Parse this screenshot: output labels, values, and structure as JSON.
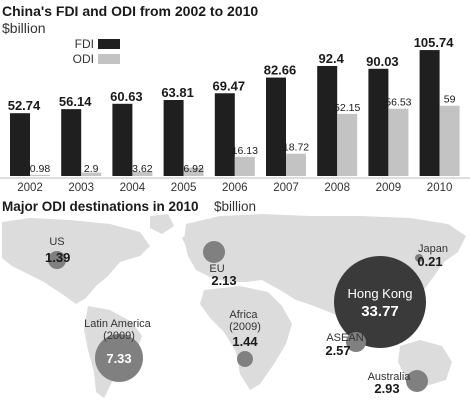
{
  "chart_data": [
    {
      "type": "bar",
      "title": "China's FDI and ODI  from 2002 to 2010",
      "unit": "$billion",
      "categories": [
        "2002",
        "2003",
        "2004",
        "2005",
        "2006",
        "2007",
        "2008",
        "2009",
        "2010"
      ],
      "series": [
        {
          "name": "FDI",
          "color": "#1f1f1f",
          "values": [
            52.74,
            56.14,
            60.63,
            63.81,
            69.47,
            82.66,
            92.4,
            90.03,
            105.74
          ],
          "labels": [
            "52.74",
            "56.14",
            "60.63",
            "63.81",
            "69.47",
            "82.66",
            "92.4",
            "90.03",
            "105.74"
          ]
        },
        {
          "name": "ODI",
          "color": "#c3c3c3",
          "values": [
            0.98,
            2.9,
            3.62,
            6.92,
            16.13,
            18.72,
            52.15,
            56.53,
            59
          ],
          "labels": [
            "0.98",
            "2.9",
            "3.62",
            "6.92",
            "16.13",
            "18.72",
            "52.15",
            "56.53",
            "59"
          ]
        }
      ],
      "ylim": [
        0,
        110
      ],
      "legend": "top-left",
      "grid": false
    },
    {
      "type": "bubble-map",
      "title": "Major ODI destinations in 2010",
      "unit": "$billion",
      "map_color": "#dcdcdc",
      "points": [
        {
          "name": "US",
          "value": 1.39,
          "label": "1.39"
        },
        {
          "name": "Latin America\n(2009)",
          "value": 7.33,
          "label": "7.33"
        },
        {
          "name": "EU",
          "value": 2.13,
          "label": "2.13"
        },
        {
          "name": "Africa\n(2009)",
          "value": 1.44,
          "label": "1.44"
        },
        {
          "name": "Hong Kong",
          "value": 33.77,
          "label": "33.77"
        },
        {
          "name": "ASEAN",
          "value": 2.57,
          "label": "2.57"
        },
        {
          "name": "Japan",
          "value": 0.21,
          "label": "0.21"
        },
        {
          "name": "Australia",
          "value": 2.93,
          "label": "2.93"
        }
      ]
    }
  ]
}
